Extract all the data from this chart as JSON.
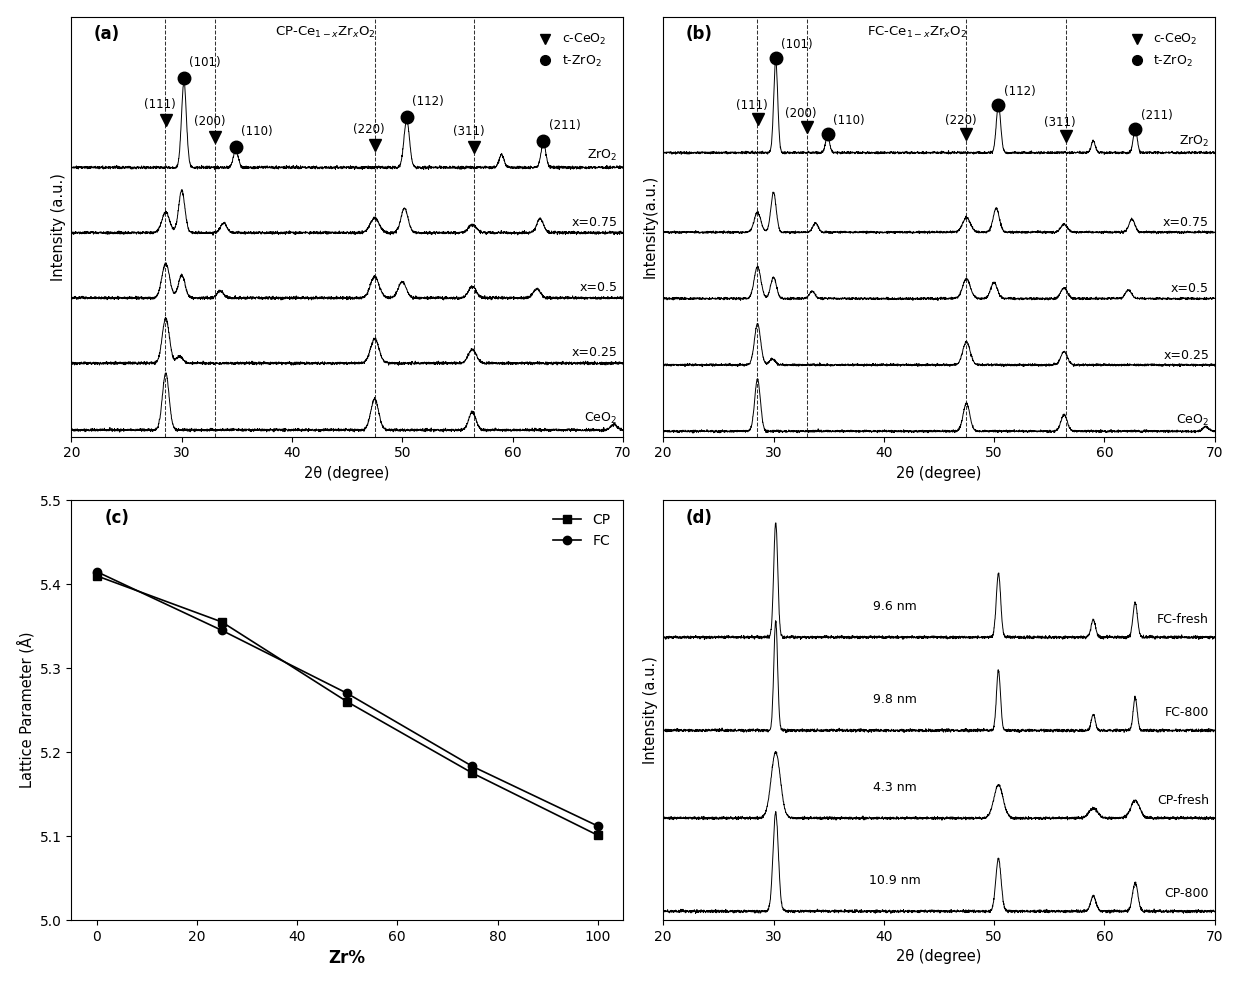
{
  "xrd_xlabel": "2θ (degree)",
  "xrd_ylabel_a": "Intensity (a.u.)",
  "xrd_ylabel_b": "Intensity(a.u.)",
  "xrd_ylabel_d": "Intensity (a.u.)",
  "dashed_lines": [
    28.5,
    33.0,
    47.5,
    56.5
  ],
  "curve_labels_a": [
    "ZrO$_2$",
    "x=0.75",
    "x=0.5",
    "x=0.25",
    "CeO$_2$"
  ],
  "curve_labels_b": [
    "ZrO$_2$",
    "x=0.75",
    "x=0.5",
    "x=0.25",
    "CeO$_2$"
  ],
  "c_lat_zr_pct": [
    0,
    25,
    50,
    75,
    100
  ],
  "c_lat_cp": [
    5.41,
    5.355,
    5.26,
    5.175,
    5.101
  ],
  "c_lat_fc": [
    5.415,
    5.345,
    5.27,
    5.183,
    5.112
  ],
  "c_lat_ylabel": "Lattice Parameter (Å)",
  "c_lat_xlabel": "Zr%",
  "c_lat_ylim": [
    5.0,
    5.5
  ],
  "panel_d_curves": [
    "FC-fresh",
    "FC-800",
    "CP-fresh",
    "CP-800"
  ],
  "panel_d_sizes": [
    "9.6 nm",
    "9.8 nm",
    "4.3 nm",
    "10.9 nm"
  ],
  "panel_d_xlabel": "2θ (degree)"
}
